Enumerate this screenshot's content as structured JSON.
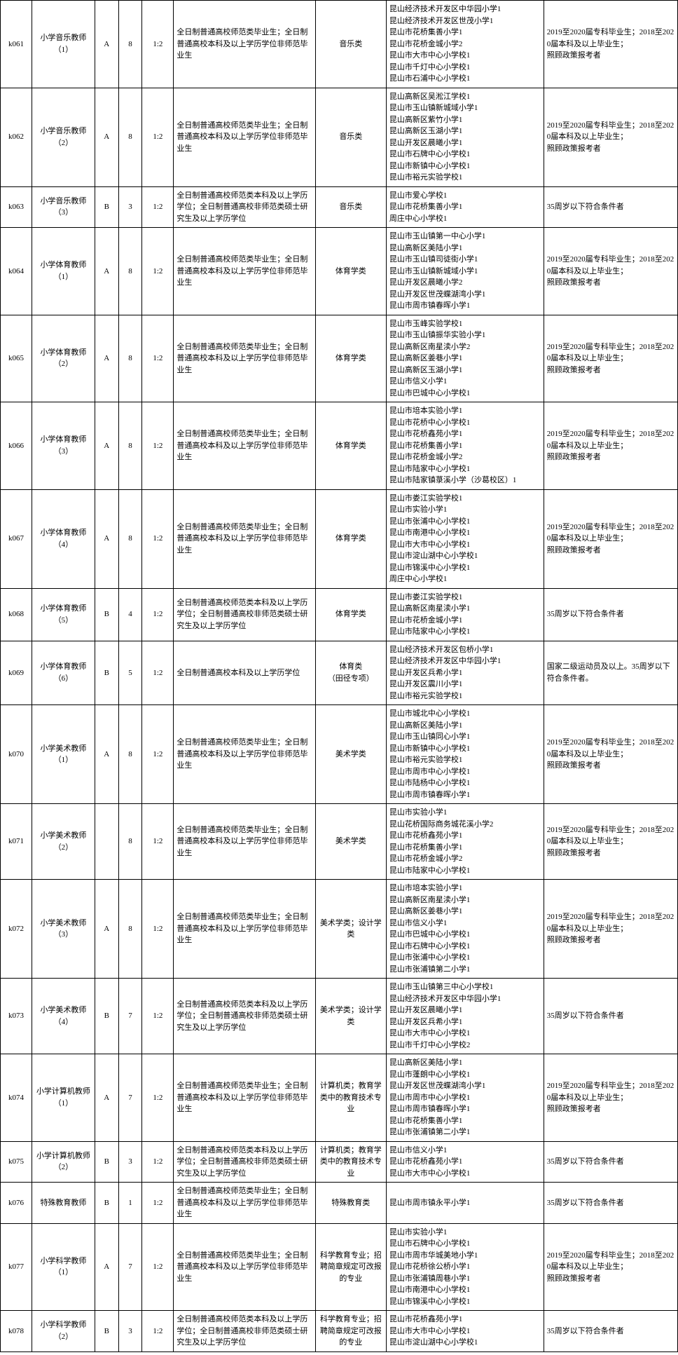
{
  "colors": {
    "border": "#000000",
    "text": "#000000",
    "bg": "#ffffff"
  },
  "font_size": 11,
  "rows": [
    {
      "code": "k061",
      "position": "小学音乐教师（1）",
      "grade": "A",
      "count": "8",
      "ratio": "1:2",
      "edu": "全日制普通高校师范类毕业生；全日制普通高校本科及以上学历学位非师范毕业生",
      "major": "音乐类",
      "schools": "昆山经济技术开发区中华园小学1\n昆山经济技术开发区世茂小学1\n昆山市花桥集善小学1\n昆山市花桥金城小学2\n昆山市大市中心小学校1\n昆山市千灯中心小学校1\n昆山市石浦中心小学校1",
      "remark": "2019至2020届专科毕业生；2018至2020届本科及以上毕业生；\n照顾政策报考者"
    },
    {
      "code": "k062",
      "position": "小学音乐教师（2）",
      "grade": "A",
      "count": "8",
      "ratio": "1:2",
      "edu": "全日制普通高校师范类毕业生；全日制普通高校本科及以上学历学位非师范毕业生",
      "major": "音乐类",
      "schools": "昆山高新区吴淞江学校1\n昆山市玉山镇新城域小学1\n昆山高新区紫竹小学1\n昆山高新区玉湖小学1\n昆山开发区晨曦小学1\n昆山市石牌中心小学校1\n昆山市新镇中心小学校1\n昆山市裕元实验学校1",
      "remark": "2019至2020届专科毕业生；2018至2020届本科及以上毕业生；\n照顾政策报考者"
    },
    {
      "code": "k063",
      "position": "小学音乐教师（3）",
      "grade": "B",
      "count": "3",
      "ratio": "1:2",
      "edu": "全日制普通高校师范类本科及以上学历学位；全日制普通高校非师范类硕士研究生及以上学历学位",
      "major": "音乐类",
      "schools": "昆山市爱心学校1\n昆山市花桥集善小学1\n周庄中心小学校1",
      "remark": "35周岁以下符合条件者"
    },
    {
      "code": "k064",
      "position": "小学体育教师（1）",
      "grade": "A",
      "count": "8",
      "ratio": "1:2",
      "edu": "全日制普通高校师范类毕业生；全日制普通高校本科及以上学历学位非师范毕业生",
      "major": "体育学类",
      "schools": "昆山市玉山镇第一中心小学1\n昆山高新区美陆小学1\n昆山市玉山镇司徒街小学1\n昆山市玉山镇新城域小学1\n昆山开发区晨曦小学2\n昆山开发区世茂蝶湖湾小学1\n昆山市周市镇春晖小学1",
      "remark": "2019至2020届专科毕业生；2018至2020届本科及以上毕业生；\n照顾政策报考者"
    },
    {
      "code": "k065",
      "position": "小学体育教师（2）",
      "grade": "A",
      "count": "8",
      "ratio": "1:2",
      "edu": "全日制普通高校师范类毕业生；全日制普通高校本科及以上学历学位非师范毕业生",
      "major": "体育学类",
      "schools": "昆山市玉峰实验学校1\n昆山市玉山镇振华实验小学1\n昆山高新区南星渎小学2\n昆山高新区姜巷小学1\n昆山高新区玉湖小学1\n昆山市信义小学1\n昆山市巴城中心小学校1",
      "remark": "2019至2020届专科毕业生；2018至2020届本科及以上毕业生；\n照顾政策报考者"
    },
    {
      "code": "k066",
      "position": "小学体育教师（3）",
      "grade": "A",
      "count": "8",
      "ratio": "1:2",
      "edu": "全日制普通高校师范类毕业生；全日制普通高校本科及以上学历学位非师范毕业生",
      "major": "体育学类",
      "schools": "昆山市培本实验小学1\n昆山市花桥中心小学校1\n昆山市花桥鑫苑小学1\n昆山市花桥集善小学1\n昆山市花桥金城小学2\n昆山市陆家中心小学校1\n昆山市陆家镇菉溪小学（沙葛校区）1",
      "remark": "2019至2020届专科毕业生；2018至2020届本科及以上毕业生；\n照顾政策报考者"
    },
    {
      "code": "k067",
      "position": "小学体育教师（4）",
      "grade": "A",
      "count": "8",
      "ratio": "1:2",
      "edu": "全日制普通高校师范类毕业生；全日制普通高校本科及以上学历学位非师范毕业生",
      "major": "体育学类",
      "schools": "昆山市娄江实验学校1\n昆山市实验小学1\n昆山市张浦中心小学校1\n昆山市南港中心小学校1\n昆山市大市中心小学校1\n昆山市淀山湖中心小学校1\n昆山市锦溪中心小学校1\n周庄中心小学校1",
      "remark": "2019至2020届专科毕业生；2018至2020届本科及以上毕业生；\n照顾政策报考者"
    },
    {
      "code": "k068",
      "position": "小学体育教师（5）",
      "grade": "B",
      "count": "4",
      "ratio": "1:2",
      "edu": "全日制普通高校师范类本科及以上学历学位；全日制普通高校非师范类硕士研究生及以上学历学位",
      "major": "体育学类",
      "schools": "昆山市娄江实验学校1\n昆山高新区南星渎小学1\n昆山市花桥金城小学1\n昆山市陆家中心小学校1",
      "remark": "35周岁以下符合条件者"
    },
    {
      "code": "k069",
      "position": "小学体育教师（6）",
      "grade": "B",
      "count": "5",
      "ratio": "1:2",
      "edu": "全日制普通高校本科及以上学历学位",
      "major": "体育类\n（田径专项）",
      "schools": "昆山经济技术开发区包桥小学1\n昆山经济技术开发区中华园小学1\n昆山开发区兵希小学1\n昆山开发区震川小学1\n昆山市裕元实验学校1",
      "remark": "国家二级运动员及以上。35周岁以下符合条件者。"
    },
    {
      "code": "k070",
      "position": "小学美术教师（1）",
      "grade": "A",
      "count": "8",
      "ratio": "1:2",
      "edu": "全日制普通高校师范类毕业生；全日制普通高校本科及以上学历学位非师范毕业生",
      "major": "美术学类",
      "schools": "昆山市城北中心小学校1\n昆山高新区美陆小学1\n昆山市玉山镇同心小学1\n昆山市新镇中心小学校1\n昆山市裕元实验学校1\n昆山市周市中心小学校1\n昆山市陆杨中心小学校1\n昆山市周市镇春晖小学1",
      "remark": "2019至2020届专科毕业生；2018至2020届本科及以上毕业生；\n照顾政策报考者"
    },
    {
      "code": "k071",
      "position": "小学美术教师（2）",
      "grade": "",
      "count": "8",
      "ratio": "1:2",
      "edu": "全日制普通高校师范类毕业生；全日制普通高校本科及以上学历学位非师范毕业生",
      "major": "美术学类",
      "schools": "昆山市实验小学1\n昆山花桥国际商务城花溪小学2\n昆山市花桥鑫苑小学1\n昆山市花桥集善小学1\n昆山市花桥金城小学2\n昆山市陆家中心小学校1",
      "remark": "2019至2020届专科毕业生；2018至2020届本科及以上毕业生；\n照顾政策报考者"
    },
    {
      "code": "k072",
      "position": "小学美术教师（3）",
      "grade": "A",
      "count": "8",
      "ratio": "1:2",
      "edu": "全日制普通高校师范类毕业生；全日制普通高校本科及以上学历学位非师范毕业生",
      "major": "美术学类；设计学类",
      "schools": "昆山市培本实验小学1\n昆山高新区南星渎小学1\n昆山高新区姜巷小学1\n昆山市信义小学1\n昆山市巴城中心小学校1\n昆山市石牌中心小学校1\n昆山市张浦中心小学校1\n昆山市张浦镇第二小学1",
      "remark": "2019至2020届专科毕业生；2018至2020届本科及以上毕业生；\n照顾政策报考者"
    },
    {
      "code": "k073",
      "position": "小学美术教师（4）",
      "grade": "B",
      "count": "7",
      "ratio": "1:2",
      "edu": "全日制普通高校师范类本科及以上学历学位；全日制普通高校非师范类硕士研究生及以上学历学位",
      "major": "美术学类；设计学类",
      "schools": "昆山市玉山镇第三中心小学校1\n昆山经济技术开发区中华园小学1\n昆山开发区晨曦小学1\n昆山开发区兵希小学1\n昆山市大市中心小学校1\n昆山市千灯中心小学校2",
      "remark": "35周岁以下符合条件者"
    },
    {
      "code": "k074",
      "position": "小学计算机教师（1）",
      "grade": "A",
      "count": "7",
      "ratio": "1:2",
      "edu": "全日制普通高校师范类毕业生；全日制普通高校本科及以上学历学位非师范毕业生",
      "major": "计算机类；教育学类中的教育技术专业",
      "schools": "昆山高新区美陆小学1\n昆山市蓬朗中心小学校1\n昆山开发区世茂蝶湖湾小学1\n昆山市周市中心小学校1\n昆山市周市镇春晖小学1\n昆山市花桥集善小学1\n昆山市张浦镇第二小学1",
      "remark": "2019至2020届专科毕业生；2018至2020届本科及以上毕业生；\n照顾政策报考者"
    },
    {
      "code": "k075",
      "position": "小学计算机教师（2）",
      "grade": "B",
      "count": "3",
      "ratio": "1:2",
      "edu": "全日制普通高校师范类本科及以上学历学位；全日制普通高校非师范类硕士研究生及以上学历学位",
      "major": "计算机类；教育学类中的教育技术专业",
      "schools": "昆山市信义小学1\n昆山市花桥鑫苑小学1\n昆山市大市中心小学校1",
      "remark": "35周岁以下符合条件者"
    },
    {
      "code": "k076",
      "position": "特殊教育教师",
      "grade": "B",
      "count": "1",
      "ratio": "1:2",
      "edu": "全日制普通高校师范类毕业生；全日制普通高校本科及以上学历学位非师范毕业生",
      "major": "特殊教育类",
      "schools": "昆山市周市镇永平小学1",
      "remark": "35周岁以下符合条件者"
    },
    {
      "code": "k077",
      "position": "小学科学教师（1）",
      "grade": "A",
      "count": "7",
      "ratio": "1:2",
      "edu": "全日制普通高校师范类毕业生；全日制普通高校本科及以上学历学位非师范毕业生",
      "major": "科学教育专业；招聘简章规定可改报的专业",
      "schools": "昆山市实验小学1\n昆山市石牌中心小学校1\n昆山市周市华城美地小学1\n昆山市花桥徐公桥小学1\n昆山市张浦镇周巷小学1\n昆山市南港中心小学校1\n昆山市锦溪中心小学校1",
      "remark": "2019至2020届专科毕业生；2018至2020届本科及以上毕业生；\n照顾政策报考者"
    },
    {
      "code": "k078",
      "position": "小学科学教师（2）",
      "grade": "B",
      "count": "3",
      "ratio": "1:2",
      "edu": "全日制普通高校师范类本科及以上学历学位；全日制普通高校非师范类硕士研究生及以上学历学位",
      "major": "科学教育专业；招聘简章规定可改报的专业",
      "schools": "昆山市花桥鑫苑小学1\n昆山市大市中心小学校1\n昆山市淀山湖中心小学校1",
      "remark": "35周岁以下符合条件者"
    }
  ]
}
